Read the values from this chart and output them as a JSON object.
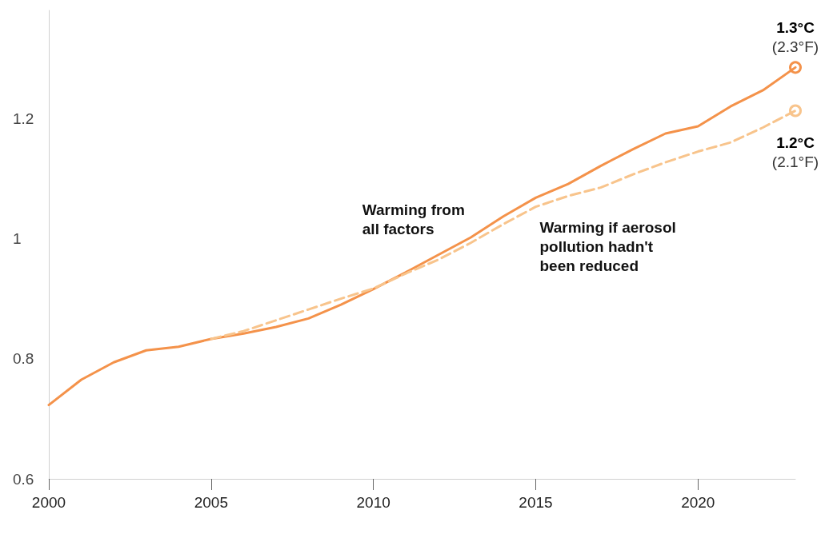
{
  "chart_data": {
    "type": "line",
    "x": [
      2000,
      2001,
      2002,
      2003,
      2004,
      2005,
      2006,
      2007,
      2008,
      2009,
      2010,
      2011,
      2012,
      2013,
      2014,
      2015,
      2016,
      2017,
      2018,
      2019,
      2020,
      2021,
      2022,
      2023
    ],
    "series": [
      {
        "name": "Warming from all factors",
        "color": "#f4924a",
        "line_style": "solid",
        "values": [
          0.723,
          0.765,
          0.794,
          0.814,
          0.82,
          0.833,
          0.842,
          0.853,
          0.867,
          0.89,
          0.916,
          0.944,
          0.973,
          1.002,
          1.037,
          1.068,
          1.091,
          1.121,
          1.149,
          1.175,
          1.187,
          1.22,
          1.247,
          1.285
        ]
      },
      {
        "name": "Warming if aerosol pollution hadn't been reduced",
        "color": "#f8c48c",
        "line_style": "dashed",
        "values": [
          null,
          null,
          null,
          null,
          null,
          0.833,
          0.846,
          0.864,
          0.882,
          0.9,
          0.917,
          0.942,
          0.965,
          0.993,
          1.024,
          1.053,
          1.071,
          1.085,
          1.107,
          1.127,
          1.145,
          1.16,
          1.185,
          1.213
        ]
      }
    ],
    "annotations": [
      {
        "text": "1.3°C (2.3°F)",
        "x": 2023,
        "y": 1.285
      },
      {
        "text": "1.2°C (2.1°F)",
        "x": 2023,
        "y": 1.213
      }
    ],
    "xlim": [
      2000,
      2023
    ],
    "xticks": [
      2000,
      2005,
      2010,
      2015,
      2020
    ],
    "ylim": [
      0.6,
      1.38
    ],
    "yticks": [
      0.6,
      0.8,
      1,
      {
        "value": 1.2,
        "label": "1.2"
      }
    ],
    "grid": false,
    "legend": false
  }
}
